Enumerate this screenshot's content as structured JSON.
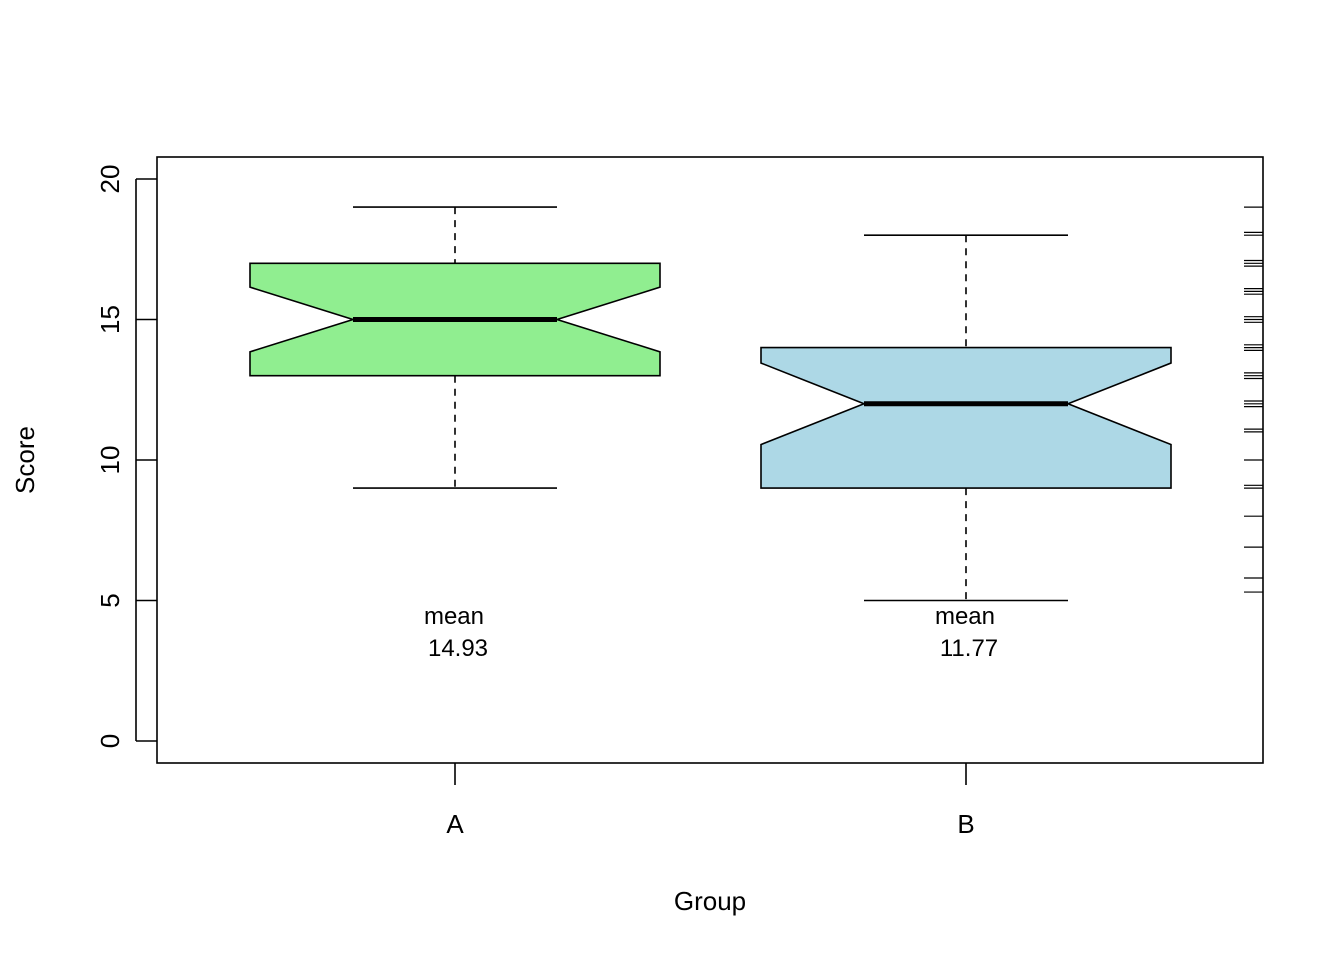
{
  "chart_data": {
    "type": "box",
    "notched": true,
    "xlabel": "Group",
    "ylabel": "Score",
    "ylim": [
      0,
      20
    ],
    "yticks": [
      0,
      5,
      10,
      15,
      20
    ],
    "categories": [
      "A",
      "B"
    ],
    "groups": [
      {
        "category": "A",
        "color": "#90EE90",
        "whisker_low": 9,
        "q1": 13,
        "median": 15,
        "q3": 17,
        "whisker_high": 19,
        "notch_low": 13.85,
        "notch_high": 16.15,
        "mean_label": "mean",
        "mean_value": "14.93"
      },
      {
        "category": "B",
        "color": "#ADD8E6",
        "whisker_low": 5,
        "q1": 9,
        "median": 12,
        "q3": 14,
        "whisker_high": 18,
        "notch_low": 10.55,
        "notch_high": 13.45,
        "mean_label": "mean",
        "mean_value": "11.77"
      }
    ],
    "rug_side": "right",
    "rug_values": [
      19,
      18.1,
      18,
      17.1,
      17,
      16.9,
      16.1,
      16,
      15.9,
      15.1,
      15,
      14.9,
      14.1,
      14,
      13.9,
      13.1,
      13,
      12.9,
      12.1,
      12,
      11.9,
      11.1,
      11,
      10,
      9.1,
      9,
      8,
      6.9,
      5.8,
      5.3
    ]
  }
}
